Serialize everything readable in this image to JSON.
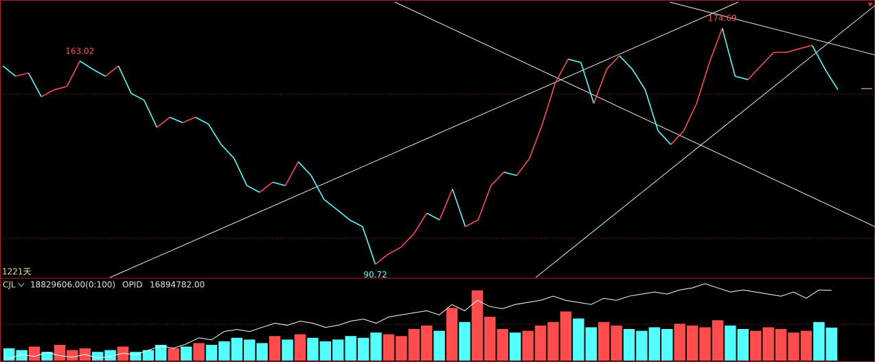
{
  "chart_data": [
    {
      "type": "line",
      "period_label": "1221天",
      "annotations": [
        163.02,
        174.69,
        90.72
      ],
      "ylim": [
        86,
        184
      ],
      "up_color": "#ff4d4d",
      "down_color": "#54ffff",
      "series": [
        {
          "name": "close",
          "color": "#54ffff",
          "values": [
            161.3,
            157.6,
            158.8,
            150.3,
            152.8,
            154.0,
            163.02,
            160.1,
            157.6,
            161.3,
            151.5,
            149.1,
            139.4,
            143.0,
            141.1,
            143.0,
            140.6,
            133.3,
            128.4,
            118.7,
            116.3,
            119.9,
            118.7,
            127.2,
            122.3,
            113.8,
            110.2,
            106.5,
            104.1,
            90.72,
            94.3,
            96.8,
            101.6,
            108.9,
            106.5,
            117.5,
            104.1,
            106.5,
            118.7,
            123.5,
            122.3,
            128.4,
            140.6,
            155.2,
            163.7,
            162.5,
            147.9,
            160.1,
            164.9,
            160.1,
            152.8,
            138.2,
            133.3,
            138.2,
            147.9,
            162.5,
            174.69,
            157.6,
            156.4,
            161.3,
            166.1,
            166.1,
            167.4,
            168.6,
            160.1,
            152.8
          ]
        }
      ]
    },
    {
      "type": "bar",
      "indicator": "CJL",
      "volume_text": "18829606.00(0:100)",
      "line_name": "OPID",
      "line_text": "16894782.00",
      "ylim": [
        0,
        45000000
      ],
      "y2lim": [
        0,
        19000000
      ],
      "series": [
        {
          "name": "CJL",
          "color": "#54ffff",
          "values": [
            7000000,
            6000000,
            8000000,
            5000000,
            9000000,
            6000000,
            7000000,
            5000000,
            6000000,
            8000000,
            5000000,
            6000000,
            9000000,
            7000000,
            8000000,
            10000000,
            9000000,
            11000000,
            13000000,
            12000000,
            10000000,
            14000000,
            12000000,
            15000000,
            13000000,
            11000000,
            12000000,
            14000000,
            13000000,
            16000000,
            15000000,
            14000000,
            18000000,
            20000000,
            17000000,
            30000000,
            22000000,
            40000000,
            25000000,
            18000000,
            16000000,
            17000000,
            20000000,
            22000000,
            28000000,
            24000000,
            19000000,
            22000000,
            20000000,
            18000000,
            17000000,
            19000000,
            18000000,
            21000000,
            20000000,
            19000000,
            23000000,
            20000000,
            18000000,
            17000000,
            19000000,
            18000000,
            16000000,
            17000000,
            22000000,
            18829606
          ]
        },
        {
          "name": "OPID",
          "color": "#ffffff",
          "axis": "y2",
          "values": [
            500000,
            1500000,
            1000000,
            2000000,
            1200000,
            800000,
            1500000,
            600000,
            1000000,
            1800000,
            1400000,
            2500000,
            3500000,
            3000000,
            4000000,
            5500000,
            5000000,
            7000000,
            7500000,
            7000000,
            8000000,
            9000000,
            8500000,
            9500000,
            9000000,
            8000000,
            8500000,
            9500000,
            10000000,
            9000000,
            10500000,
            11000000,
            11500000,
            12000000,
            11000000,
            13500000,
            12000000,
            14500000,
            13000000,
            12500000,
            13500000,
            14000000,
            14500000,
            15500000,
            14500000,
            14000000,
            13500000,
            15000000,
            14500000,
            15500000,
            16000000,
            16500000,
            16000000,
            17000000,
            17500000,
            18500000,
            17500000,
            16500000,
            17000000,
            16500000,
            16000000,
            15500000,
            16500000,
            15000000,
            17000000,
            16894782
          ]
        }
      ]
    }
  ]
}
